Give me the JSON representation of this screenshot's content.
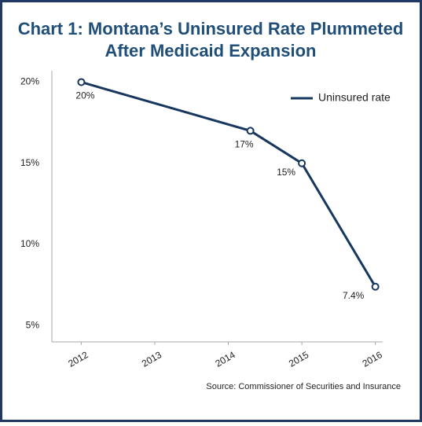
{
  "chart_data": {
    "type": "line",
    "title": [
      "Chart 1: Montana’s Uninsured Rate Plummeted",
      "After Medicaid Expansion"
    ],
    "source": "Source: Commissioner of Securities and Insurance",
    "x": [
      2012,
      2014.3,
      2015,
      2016
    ],
    "xlim": [
      2011.6,
      2016.1
    ],
    "xticks": [
      2012,
      2013,
      2014,
      2015,
      2016
    ],
    "ylim": [
      4,
      20.7
    ],
    "yticks": [
      {
        "value": 5,
        "label": "5%"
      },
      {
        "value": 10,
        "label": "10%"
      },
      {
        "value": 15,
        "label": "15%"
      },
      {
        "value": 20,
        "label": "20%"
      }
    ],
    "grid": false,
    "legend": "upper right",
    "series": [
      {
        "name": "Uninsured rate",
        "color": "#17375e",
        "values": [
          20,
          17,
          15,
          7.4
        ],
        "value_labels": [
          "20%",
          "17%",
          "15%",
          "7.4%"
        ]
      }
    ]
  }
}
